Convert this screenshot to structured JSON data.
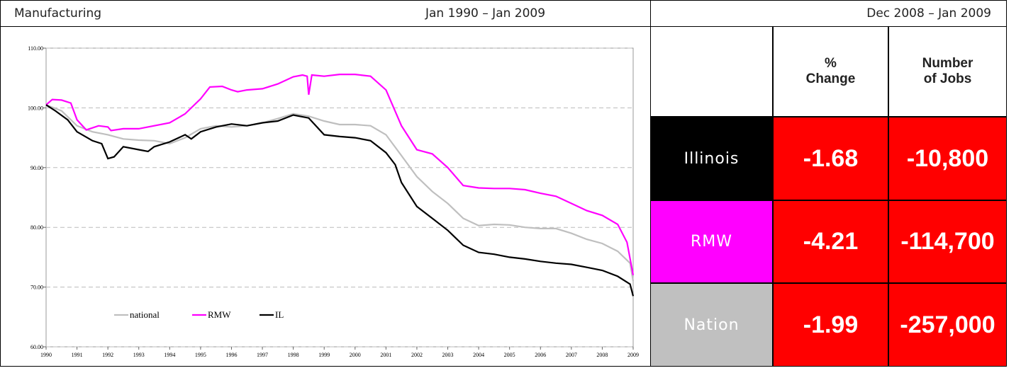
{
  "header": {
    "title": "Manufacturing",
    "range": "Jan 1990 – Jan 2009",
    "table_range": "Dec 2008 – Jan 2009"
  },
  "chart_data": {
    "type": "line",
    "xlim": [
      1990,
      2009
    ],
    "xticks": [
      1990,
      1991,
      1992,
      1993,
      1994,
      1995,
      1996,
      1997,
      1998,
      1999,
      2000,
      2001,
      2002,
      2003,
      2004,
      2005,
      2006,
      2007,
      2008,
      2009
    ],
    "ylim": [
      60,
      110
    ],
    "yticks": [
      {
        "value": 60,
        "label": "60.00"
      },
      {
        "value": 70,
        "label": "70.00"
      },
      {
        "value": 80,
        "label": "80.00"
      },
      {
        "value": 90,
        "label": "90.00"
      },
      {
        "value": 100,
        "label": "100.00"
      },
      {
        "value": 110,
        "label": "110.00"
      }
    ],
    "grid": true,
    "series": [
      {
        "name": "national",
        "color": "#bfbfbf",
        "x": [
          1990,
          1990.5,
          1991,
          1991.5,
          1992,
          1992.5,
          1993,
          1993.5,
          1994,
          1994.5,
          1995,
          1995.5,
          1996,
          1996.5,
          1997,
          1997.5,
          1998,
          1998.5,
          1999,
          1999.5,
          2000,
          2000.5,
          2001,
          2001.5,
          2002,
          2002.5,
          2003,
          2003.5,
          2004,
          2004.5,
          2005,
          2005.5,
          2006,
          2006.5,
          2007,
          2007.5,
          2008,
          2008.5,
          2008.9,
          2009
        ],
        "values": [
          100.5,
          99.5,
          97.0,
          96.0,
          95.5,
          94.8,
          94.6,
          94.5,
          94.0,
          95.0,
          96.5,
          97.0,
          96.8,
          97.0,
          97.5,
          98.2,
          99.0,
          98.6,
          97.8,
          97.2,
          97.2,
          97.0,
          95.5,
          92.0,
          88.5,
          86.0,
          84.0,
          81.5,
          80.3,
          80.5,
          80.4,
          80.0,
          79.8,
          79.8,
          79.0,
          78.0,
          77.3,
          76.0,
          74.0,
          71.0
        ]
      },
      {
        "name": "RMW",
        "color": "#ff00ff",
        "x": [
          1990,
          1990.2,
          1990.5,
          1990.8,
          1991,
          1991.3,
          1991.7,
          1992,
          1992.1,
          1992.5,
          1993,
          1993.5,
          1994,
          1994.5,
          1995,
          1995.3,
          1995.7,
          1996,
          1996.2,
          1996.5,
          1997,
          1997.5,
          1998,
          1998.3,
          1998.45,
          1998.5,
          1998.6,
          1999,
          1999.5,
          2000,
          2000.5,
          2001,
          2001.5,
          2002,
          2002.5,
          2003,
          2003.5,
          2004,
          2004.5,
          2005,
          2005.5,
          2006,
          2006.5,
          2007,
          2007.5,
          2008,
          2008.5,
          2008.8,
          2009
        ],
        "values": [
          100.5,
          101.4,
          101.3,
          100.8,
          98.0,
          96.3,
          97.0,
          96.8,
          96.2,
          96.5,
          96.5,
          97.0,
          97.5,
          99.0,
          101.5,
          103.5,
          103.6,
          103.0,
          102.7,
          103.0,
          103.2,
          104.0,
          105.2,
          105.5,
          105.3,
          102.2,
          105.5,
          105.3,
          105.6,
          105.6,
          105.3,
          103.0,
          97.0,
          93.0,
          92.3,
          90.0,
          87.0,
          86.6,
          86.5,
          86.5,
          86.3,
          85.7,
          85.2,
          84.0,
          82.8,
          82.0,
          80.5,
          77.5,
          72.0
        ]
      },
      {
        "name": "IL",
        "color": "#000000",
        "x": [
          1990,
          1990.3,
          1990.7,
          1991,
          1991.5,
          1991.8,
          1992,
          1992.2,
          1992.5,
          1993,
          1993.3,
          1993.5,
          1994,
          1994.5,
          1994.7,
          1995,
          1995.5,
          1996,
          1996.5,
          1997,
          1997.5,
          1998,
          1998.5,
          1999,
          1999.5,
          2000,
          2000.5,
          2001,
          2001.3,
          2001.5,
          2002,
          2002.5,
          2003,
          2003.5,
          2004,
          2004.5,
          2005,
          2005.5,
          2006,
          2006.5,
          2007,
          2007.5,
          2008,
          2008.5,
          2008.9,
          2009
        ],
        "values": [
          100.5,
          99.5,
          98.0,
          96.0,
          94.5,
          94.0,
          91.5,
          91.8,
          93.5,
          93.0,
          92.7,
          93.5,
          94.3,
          95.5,
          94.8,
          96.0,
          96.8,
          97.3,
          97.0,
          97.5,
          97.8,
          98.8,
          98.3,
          95.5,
          95.2,
          95.0,
          94.5,
          92.5,
          90.5,
          87.5,
          83.5,
          81.5,
          79.5,
          77.0,
          75.8,
          75.5,
          75.0,
          74.7,
          74.3,
          74.0,
          73.8,
          73.3,
          72.8,
          71.8,
          70.5,
          68.5
        ]
      }
    ]
  },
  "table": {
    "columns": [
      "% Change",
      "Number of Jobs"
    ],
    "rows": [
      [
        "Illinois",
        "-1.68",
        "-10,800"
      ],
      [
        "RMW",
        "-4.21",
        "-114,700"
      ],
      [
        "Nation",
        "-1.99",
        "-257,000"
      ]
    ]
  }
}
